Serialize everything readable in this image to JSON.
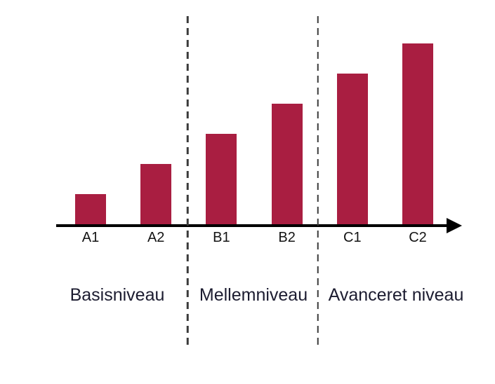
{
  "chart_data": {
    "type": "bar",
    "title": "",
    "xlabel": "",
    "ylabel": "",
    "grid": false,
    "legend": false,
    "categories": [
      "A1",
      "A2",
      "B1",
      "B2",
      "C1",
      "C2"
    ],
    "values": [
      1,
      2,
      3,
      4,
      5,
      6
    ],
    "value_note": "relative level heights, no y-axis scale shown",
    "sections": [
      {
        "label": "Basisniveau",
        "categories": [
          "A1",
          "A2"
        ]
      },
      {
        "label": "Mellemniveau",
        "categories": [
          "B1",
          "B2"
        ]
      },
      {
        "label": "Avanceret niveau",
        "categories": [
          "C1",
          "C2"
        ]
      }
    ]
  },
  "colors": {
    "bar": "#A91E41",
    "axis": "#000000",
    "divider": "#3a3a3a",
    "category_label_text": "#141414",
    "section_label_text": "#1c1c30",
    "background": "#ffffff"
  }
}
